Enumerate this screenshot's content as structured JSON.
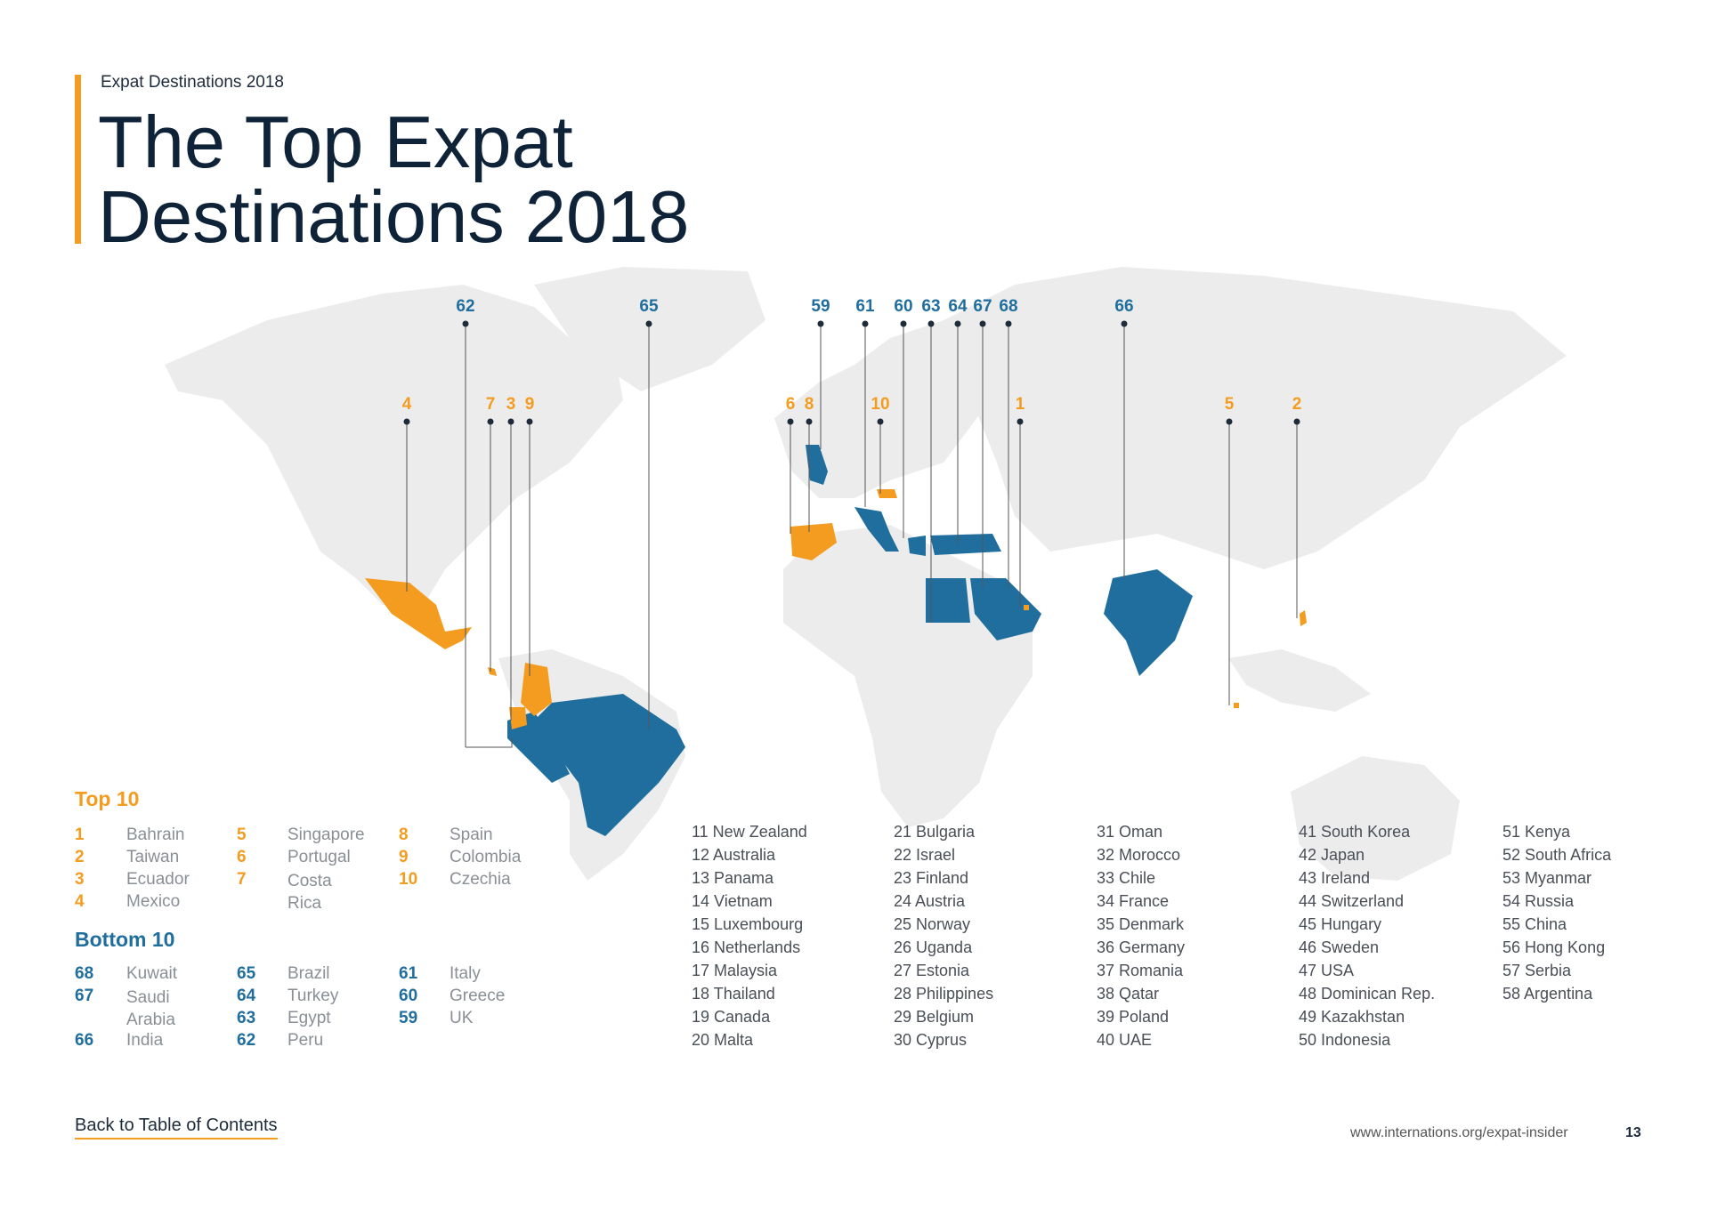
{
  "header": {
    "kicker": "Expat Destinations 2018",
    "title_line1": "The Top Expat",
    "title_line2": "Destinations 2018"
  },
  "map_labels": {
    "blue": [
      "62",
      "65",
      "59",
      "61",
      "60",
      "63",
      "64",
      "67",
      "68",
      "66"
    ],
    "orange": [
      "4",
      "7",
      "3",
      "9",
      "6",
      "8",
      "10",
      "1",
      "5",
      "2"
    ]
  },
  "colors": {
    "orange": "#f39c1f",
    "blue": "#1f6e9e",
    "land": "#ececec"
  },
  "legend": {
    "top_heading": "Top 10",
    "bottom_heading": "Bottom 10",
    "top": [
      {
        "rank": "1",
        "name": "Bahrain"
      },
      {
        "rank": "2",
        "name": "Taiwan"
      },
      {
        "rank": "3",
        "name": "Ecuador"
      },
      {
        "rank": "4",
        "name": "Mexico"
      },
      {
        "rank": "5",
        "name": "Singapore"
      },
      {
        "rank": "6",
        "name": "Portugal"
      },
      {
        "rank": "7",
        "name": "Costa Rica"
      },
      {
        "rank": "8",
        "name": "Spain"
      },
      {
        "rank": "9",
        "name": "Colombia"
      },
      {
        "rank": "10",
        "name": "Czechia"
      }
    ],
    "bottom": [
      {
        "rank": "68",
        "name": "Kuwait"
      },
      {
        "rank": "67",
        "name": "Saudi Arabia"
      },
      {
        "rank": "66",
        "name": "India"
      },
      {
        "rank": "65",
        "name": "Brazil"
      },
      {
        "rank": "64",
        "name": "Turkey"
      },
      {
        "rank": "63",
        "name": "Egypt"
      },
      {
        "rank": "62",
        "name": "Peru"
      },
      {
        "rank": "61",
        "name": "Italy"
      },
      {
        "rank": "60",
        "name": "Greece"
      },
      {
        "rank": "59",
        "name": "UK"
      }
    ]
  },
  "ranking_columns": [
    [
      "11 New Zealand",
      "12 Australia",
      "13 Panama",
      "14 Vietnam",
      "15 Luxembourg",
      "16 Netherlands",
      "17 Malaysia",
      "18 Thailand",
      "19 Canada",
      "20 Malta"
    ],
    [
      "21 Bulgaria",
      "22 Israel",
      "23 Finland",
      "24 Austria",
      "25 Norway",
      "26 Uganda",
      "27 Estonia",
      "28 Philippines",
      "29 Belgium",
      "30 Cyprus"
    ],
    [
      "31 Oman",
      "32 Morocco",
      "33 Chile",
      "34 France",
      "35 Denmark",
      "36 Germany",
      "37 Romania",
      "38 Qatar",
      "39 Poland",
      "40 UAE"
    ],
    [
      "41 South Korea",
      "42 Japan",
      "43 Ireland",
      "44 Switzerland",
      "45 Hungary",
      "46 Sweden",
      "47 USA",
      "48 Dominican Rep.",
      "49 Kazakhstan",
      "50 Indonesia"
    ],
    [
      "51 Kenya",
      "52 South Africa",
      "53 Myanmar",
      "54 Russia",
      "55 China",
      "56 Hong Kong",
      "57 Serbia",
      "58 Argentina"
    ]
  ],
  "footer": {
    "back_link": "Back to Table of Contents",
    "url": "www.internations.org/expat-insider",
    "page": "13"
  }
}
